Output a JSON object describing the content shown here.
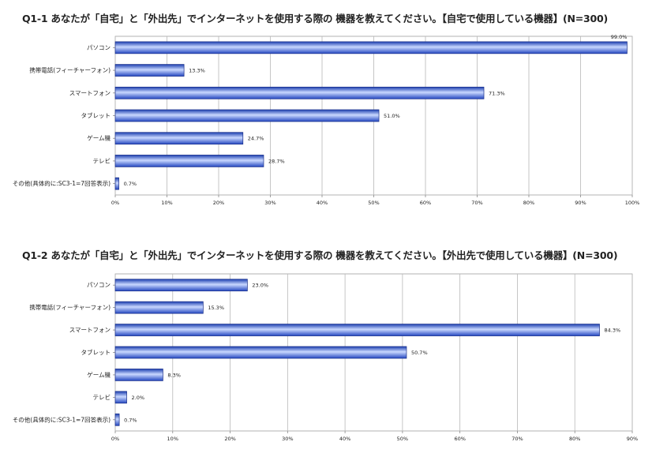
{
  "chart_data": [
    {
      "type": "bar",
      "orientation": "horizontal",
      "title": "Q1-1 あなたが「自宅」と「外出先」でインターネットを使用する際の 機器を教えてください。【自宅で使用している機器】(N=300)",
      "categories": [
        "パソコン",
        "携帯電話(フィーチャーフォン)",
        "スマートフォン",
        "タブレット",
        "ゲーム機",
        "テレビ",
        "その他(具体的に:SC3-1=7回答表示)"
      ],
      "values": [
        99.0,
        13.3,
        71.3,
        51.0,
        24.7,
        28.7,
        0.7
      ],
      "value_labels": [
        "99.0%",
        "13.3%",
        "71.3%",
        "51.0%",
        "24.7%",
        "28.7%",
        "0.7%"
      ],
      "xlim": [
        0,
        100
      ],
      "ticks": [
        0,
        10,
        20,
        30,
        40,
        50,
        60,
        70,
        80,
        90,
        100
      ],
      "tick_labels": [
        "0%",
        "10%",
        "20%",
        "30%",
        "40%",
        "50%",
        "60%",
        "70%",
        "80%",
        "90%",
        "100%"
      ],
      "grid": true,
      "bar_color": "#3f6fe0"
    },
    {
      "type": "bar",
      "orientation": "horizontal",
      "title": "Q1-2 あなたが「自宅」と「外出先」でインターネットを使用する際の 機器を教えてください。【外出先で使用している機器】(N=300)",
      "categories": [
        "パソコン",
        "携帯電話(フィーチャーフォン)",
        "スマートフォン",
        "タブレット",
        "ゲーム機",
        "テレビ",
        "その他(具体的に:SC3-1=7回答表示)"
      ],
      "values": [
        23.0,
        15.3,
        84.3,
        50.7,
        8.3,
        2.0,
        0.7
      ],
      "value_labels": [
        "23.0%",
        "15.3%",
        "84.3%",
        "50.7%",
        "8.3%",
        "2.0%",
        "0.7%"
      ],
      "xlim": [
        0,
        90
      ],
      "ticks": [
        0,
        10,
        20,
        30,
        40,
        50,
        60,
        70,
        80,
        90
      ],
      "tick_labels": [
        "0%",
        "10%",
        "20%",
        "30%",
        "40%",
        "50%",
        "60%",
        "70%",
        "80%",
        "90%"
      ],
      "grid": true,
      "bar_color": "#3f6fe0"
    }
  ]
}
